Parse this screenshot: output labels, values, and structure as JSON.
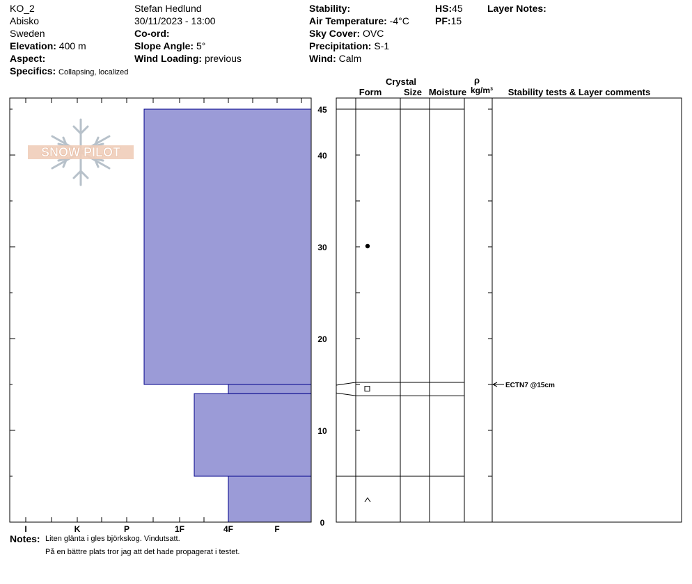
{
  "header": {
    "pit_name": "KO_2",
    "location": "Abisko",
    "country": "Sweden",
    "elevation_label": "Elevation:",
    "elevation_value": "400 m",
    "aspect_label": "Aspect:",
    "specifics_label": "Specifics:",
    "specifics_value": "Collapsing, localized",
    "observer": "Stefan Hedlund",
    "datetime": "30/11/2023 - 13:00",
    "coord_label": "Co-ord:",
    "slope_label": "Slope Angle:",
    "slope_value": "5°",
    "wind_loading_label": "Wind Loading:",
    "wind_loading_value": "previous",
    "stability_label": "Stability:",
    "air_temp_label": "Air Temperature:",
    "air_temp_value": "-4°C",
    "sky_cover_label": "Sky Cover:",
    "sky_cover_value": "OVC",
    "precip_label": "Precipitation:",
    "precip_value": "S-1",
    "wind_label": "Wind:",
    "wind_value": "Calm",
    "hs_label": "HS:",
    "hs_value": "45",
    "pf_label": "PF:",
    "pf_value": "15",
    "layer_notes_label": "Layer Notes:"
  },
  "logo": {
    "text": "SNOW PILOT"
  },
  "table_headers": {
    "crystal": "Crystal",
    "form": "Form",
    "size": "Size",
    "moisture": "Moisture",
    "rho": "ρ",
    "density_unit": "kg/m³",
    "stability_comments": "Stability tests & Layer comments"
  },
  "chart_data": {
    "type": "snow_profile",
    "height_axis": {
      "min": 0,
      "max": 45,
      "unit": "cm",
      "major_ticks": [
        0,
        10,
        20,
        30,
        40,
        45
      ]
    },
    "hardness_axis": [
      "I",
      "K",
      "P",
      "1F",
      "4F",
      "F"
    ],
    "hardness_layers": [
      {
        "top": 45,
        "bottom": 15,
        "hardness": "P+"
      },
      {
        "top": 15,
        "bottom": 14,
        "hardness": "4F"
      },
      {
        "top": 14,
        "bottom": 5,
        "hardness": "1F+"
      },
      {
        "top": 5,
        "bottom": 0,
        "hardness": "4F"
      }
    ],
    "layer_boundaries": [
      45,
      15,
      14,
      5
    ],
    "grain_symbols": [
      {
        "height": 30,
        "symbol": "●",
        "name": "filled-circle"
      },
      {
        "height": 14.5,
        "symbol": "□",
        "name": "square"
      },
      {
        "height": 2.5,
        "symbol": "^",
        "name": "caret"
      }
    ],
    "stability_tests": [
      {
        "height": 15,
        "label": "ECTN7 @15cm"
      }
    ],
    "bar_color": "#9b9bd7",
    "bar_stroke": "#00008b"
  },
  "notes": {
    "label": "Notes:",
    "line1": "Liten glänta i gles björkskog. Vindutsatt.",
    "line2": "På en bättre plats tror jag att det hade propagerat i testet."
  }
}
